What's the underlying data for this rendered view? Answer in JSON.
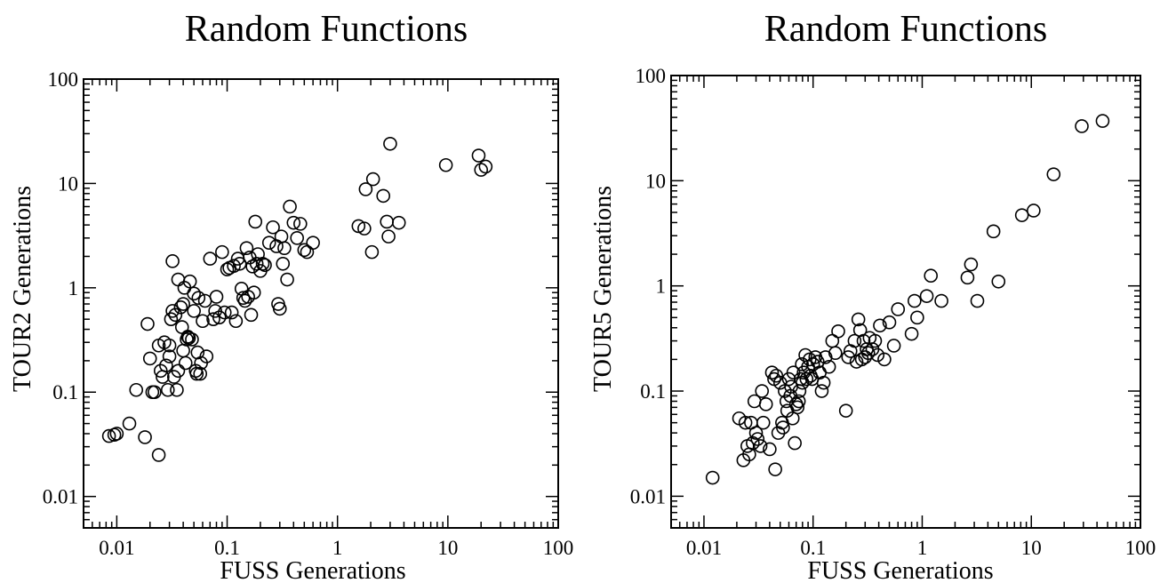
{
  "chart_data": [
    {
      "type": "scatter",
      "title": "Random Functions",
      "xlabel": "FUSS Generations",
      "ylabel": "TOUR2 Generations",
      "xscale": "log",
      "yscale": "log",
      "xlim": [
        0.005,
        100
      ],
      "ylim": [
        0.005,
        100
      ],
      "xticks": [
        "0.01",
        "0.1",
        "1",
        "10",
        "100"
      ],
      "yticks": [
        "0.01",
        "0.1",
        "1",
        "10",
        "100"
      ],
      "marker": "open-circle",
      "grid": false,
      "points": [
        [
          0.0085,
          0.038
        ],
        [
          0.0095,
          0.039
        ],
        [
          0.01,
          0.04
        ],
        [
          0.013,
          0.05
        ],
        [
          0.015,
          0.105
        ],
        [
          0.018,
          0.037
        ],
        [
          0.019,
          0.45
        ],
        [
          0.02,
          0.21
        ],
        [
          0.021,
          0.1
        ],
        [
          0.022,
          0.1
        ],
        [
          0.024,
          0.025
        ],
        [
          0.024,
          0.28
        ],
        [
          0.025,
          0.16
        ],
        [
          0.026,
          0.14
        ],
        [
          0.027,
          0.3
        ],
        [
          0.028,
          0.18
        ],
        [
          0.029,
          0.105
        ],
        [
          0.03,
          0.28
        ],
        [
          0.03,
          0.22
        ],
        [
          0.031,
          0.5
        ],
        [
          0.032,
          0.6
        ],
        [
          0.032,
          1.8
        ],
        [
          0.033,
          0.14
        ],
        [
          0.034,
          0.55
        ],
        [
          0.035,
          0.105
        ],
        [
          0.036,
          0.16
        ],
        [
          0.036,
          1.2
        ],
        [
          0.038,
          0.65
        ],
        [
          0.039,
          0.42
        ],
        [
          0.04,
          0.25
        ],
        [
          0.04,
          0.7
        ],
        [
          0.041,
          1.0
        ],
        [
          0.042,
          0.19
        ],
        [
          0.043,
          0.32
        ],
        [
          0.044,
          0.34
        ],
        [
          0.045,
          0.33
        ],
        [
          0.046,
          1.15
        ],
        [
          0.048,
          0.32
        ],
        [
          0.05,
          0.88
        ],
        [
          0.05,
          0.6
        ],
        [
          0.052,
          0.16
        ],
        [
          0.053,
          0.15
        ],
        [
          0.054,
          0.24
        ],
        [
          0.055,
          0.8
        ],
        [
          0.057,
          0.15
        ],
        [
          0.058,
          0.19
        ],
        [
          0.06,
          0.48
        ],
        [
          0.063,
          0.75
        ],
        [
          0.065,
          0.22
        ],
        [
          0.07,
          1.9
        ],
        [
          0.075,
          0.5
        ],
        [
          0.078,
          0.6
        ],
        [
          0.08,
          0.82
        ],
        [
          0.085,
          0.52
        ],
        [
          0.09,
          2.2
        ],
        [
          0.095,
          0.58
        ],
        [
          0.1,
          1.5
        ],
        [
          0.105,
          1.55
        ],
        [
          0.11,
          0.58
        ],
        [
          0.115,
          1.62
        ],
        [
          0.12,
          0.48
        ],
        [
          0.125,
          1.9
        ],
        [
          0.13,
          1.7
        ],
        [
          0.135,
          0.98
        ],
        [
          0.14,
          0.8
        ],
        [
          0.145,
          0.75
        ],
        [
          0.15,
          2.4
        ],
        [
          0.155,
          0.82
        ],
        [
          0.16,
          1.95
        ],
        [
          0.165,
          0.55
        ],
        [
          0.17,
          1.6
        ],
        [
          0.175,
          0.9
        ],
        [
          0.18,
          4.3
        ],
        [
          0.185,
          1.7
        ],
        [
          0.19,
          2.1
        ],
        [
          0.2,
          1.45
        ],
        [
          0.21,
          1.7
        ],
        [
          0.22,
          1.65
        ],
        [
          0.24,
          2.7
        ],
        [
          0.26,
          3.8
        ],
        [
          0.28,
          2.5
        ],
        [
          0.29,
          0.7
        ],
        [
          0.3,
          0.63
        ],
        [
          0.31,
          3.1
        ],
        [
          0.32,
          1.7
        ],
        [
          0.33,
          2.4
        ],
        [
          0.35,
          1.2
        ],
        [
          0.37,
          6.0
        ],
        [
          0.4,
          4.2
        ],
        [
          0.43,
          3.0
        ],
        [
          0.46,
          4.1
        ],
        [
          0.5,
          2.3
        ],
        [
          0.53,
          2.2
        ],
        [
          0.6,
          2.7
        ],
        [
          1.55,
          3.9
        ],
        [
          1.75,
          3.7
        ],
        [
          1.8,
          8.8
        ],
        [
          2.05,
          2.2
        ],
        [
          2.1,
          11.0
        ],
        [
          2.6,
          7.6
        ],
        [
          2.8,
          4.3
        ],
        [
          2.9,
          3.1
        ],
        [
          3.0,
          24.0
        ],
        [
          3.6,
          4.2
        ],
        [
          9.6,
          15.0
        ],
        [
          19.0,
          18.5
        ],
        [
          20.0,
          13.5
        ],
        [
          22.0,
          14.5
        ]
      ]
    },
    {
      "type": "scatter",
      "title": "Random Functions",
      "xlabel": "FUSS Generations",
      "ylabel": "TOUR5 Generations",
      "xscale": "log",
      "yscale": "log",
      "xlim": [
        0.005,
        100
      ],
      "ylim": [
        0.005,
        100
      ],
      "xticks": [
        "0.01",
        "0.1",
        "1",
        "10",
        "100"
      ],
      "yticks": [
        "0.01",
        "0.1",
        "1",
        "10",
        "100"
      ],
      "marker": "open-circle",
      "grid": false,
      "points": [
        [
          0.012,
          0.015
        ],
        [
          0.021,
          0.055
        ],
        [
          0.023,
          0.022
        ],
        [
          0.024,
          0.05
        ],
        [
          0.025,
          0.03
        ],
        [
          0.026,
          0.025
        ],
        [
          0.027,
          0.05
        ],
        [
          0.028,
          0.032
        ],
        [
          0.029,
          0.08
        ],
        [
          0.03,
          0.04
        ],
        [
          0.031,
          0.035
        ],
        [
          0.033,
          0.03
        ],
        [
          0.034,
          0.1
        ],
        [
          0.035,
          0.05
        ],
        [
          0.037,
          0.075
        ],
        [
          0.04,
          0.028
        ],
        [
          0.042,
          0.15
        ],
        [
          0.044,
          0.13
        ],
        [
          0.045,
          0.018
        ],
        [
          0.046,
          0.14
        ],
        [
          0.048,
          0.04
        ],
        [
          0.05,
          0.12
        ],
        [
          0.052,
          0.05
        ],
        [
          0.053,
          0.045
        ],
        [
          0.055,
          0.1
        ],
        [
          0.057,
          0.08
        ],
        [
          0.058,
          0.065
        ],
        [
          0.06,
          0.13
        ],
        [
          0.062,
          0.09
        ],
        [
          0.063,
          0.11
        ],
        [
          0.065,
          0.055
        ],
        [
          0.066,
          0.15
        ],
        [
          0.068,
          0.032
        ],
        [
          0.07,
          0.075
        ],
        [
          0.072,
          0.07
        ],
        [
          0.074,
          0.08
        ],
        [
          0.075,
          0.1
        ],
        [
          0.077,
          0.13
        ],
        [
          0.079,
          0.18
        ],
        [
          0.08,
          0.12
        ],
        [
          0.082,
          0.15
        ],
        [
          0.085,
          0.22
        ],
        [
          0.087,
          0.13
        ],
        [
          0.09,
          0.17
        ],
        [
          0.093,
          0.2
        ],
        [
          0.095,
          0.14
        ],
        [
          0.098,
          0.13
        ],
        [
          0.1,
          0.18
        ],
        [
          0.105,
          0.21
        ],
        [
          0.11,
          0.19
        ],
        [
          0.115,
          0.15
        ],
        [
          0.12,
          0.1
        ],
        [
          0.125,
          0.12
        ],
        [
          0.13,
          0.21
        ],
        [
          0.14,
          0.17
        ],
        [
          0.15,
          0.3
        ],
        [
          0.16,
          0.23
        ],
        [
          0.17,
          0.37
        ],
        [
          0.2,
          0.065
        ],
        [
          0.21,
          0.21
        ],
        [
          0.22,
          0.24
        ],
        [
          0.24,
          0.3
        ],
        [
          0.25,
          0.19
        ],
        [
          0.26,
          0.48
        ],
        [
          0.27,
          0.38
        ],
        [
          0.28,
          0.2
        ],
        [
          0.29,
          0.3
        ],
        [
          0.3,
          0.21
        ],
        [
          0.31,
          0.25
        ],
        [
          0.32,
          0.23
        ],
        [
          0.33,
          0.32
        ],
        [
          0.35,
          0.25
        ],
        [
          0.37,
          0.3
        ],
        [
          0.39,
          0.22
        ],
        [
          0.41,
          0.42
        ],
        [
          0.45,
          0.2
        ],
        [
          0.5,
          0.45
        ],
        [
          0.55,
          0.27
        ],
        [
          0.6,
          0.6
        ],
        [
          0.8,
          0.35
        ],
        [
          0.85,
          0.72
        ],
        [
          0.9,
          0.5
        ],
        [
          1.1,
          0.8
        ],
        [
          1.2,
          1.25
        ],
        [
          1.5,
          0.72
        ],
        [
          2.6,
          1.2
        ],
        [
          2.8,
          1.6
        ],
        [
          3.2,
          0.72
        ],
        [
          4.5,
          3.3
        ],
        [
          5.0,
          1.1
        ],
        [
          8.2,
          4.7
        ],
        [
          10.5,
          5.2
        ],
        [
          16.0,
          11.5
        ],
        [
          29.0,
          33.0
        ],
        [
          45.0,
          37.0
        ]
      ]
    }
  ]
}
